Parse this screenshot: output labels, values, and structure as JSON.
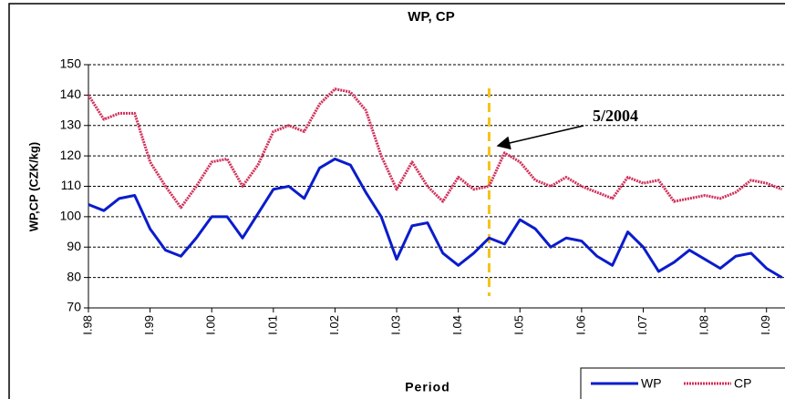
{
  "chart_data": {
    "type": "line",
    "title": "WP, CP",
    "x_label": "Period",
    "y_label": "WP,CP (CZK/kg)",
    "x": [
      1998,
      1998.25,
      1998.5,
      1998.75,
      1999,
      1999.25,
      1999.5,
      1999.75,
      2000,
      2000.25,
      2000.5,
      2000.75,
      2001,
      2001.25,
      2001.5,
      2001.75,
      2002,
      2002.25,
      2002.5,
      2002.75,
      2003,
      2003.25,
      2003.5,
      2003.75,
      2004,
      2004.25,
      2004.5,
      2004.75,
      2005,
      2005.25,
      2005.5,
      2005.75,
      2006,
      2006.25,
      2006.5,
      2006.75,
      2007,
      2007.25,
      2007.5,
      2007.75,
      2008,
      2008.25,
      2008.5,
      2008.75,
      2009,
      2009.25
    ],
    "series": [
      {
        "name": "WP",
        "color": "#0a1ccc",
        "values": [
          104,
          102,
          106,
          107,
          96,
          89,
          87,
          93,
          100,
          100,
          93,
          101,
          109,
          110,
          106,
          116,
          119,
          117,
          108,
          100,
          86,
          97,
          98,
          88,
          84,
          88,
          93,
          91,
          99,
          96,
          90,
          93,
          92,
          87,
          84,
          95,
          90,
          82,
          85,
          89,
          86,
          83,
          87,
          88,
          83,
          80
        ]
      },
      {
        "name": "CP",
        "color": "#d0305a",
        "values": [
          140,
          132,
          134,
          134,
          118,
          110,
          103,
          110,
          118,
          119,
          110,
          117,
          128,
          130,
          128,
          137,
          142,
          141,
          135,
          120,
          109,
          118,
          110,
          105,
          113,
          109,
          110,
          121,
          118,
          112,
          110,
          113,
          110,
          108,
          106,
          113,
          111,
          112,
          105,
          106,
          107,
          106,
          108,
          112,
          111,
          109
        ]
      }
    ],
    "xlim": [
      1998,
      2009.3
    ],
    "ylim": [
      70,
      150
    ],
    "yticks": [
      70,
      80,
      90,
      100,
      110,
      120,
      130,
      140,
      150
    ],
    "xticks": [
      {
        "value": 1998,
        "label": "I.98"
      },
      {
        "value": 1999,
        "label": "I.99"
      },
      {
        "value": 2000,
        "label": "I.00"
      },
      {
        "value": 2001,
        "label": "I.01"
      },
      {
        "value": 2002,
        "label": "I.02"
      },
      {
        "value": 2003,
        "label": "I.03"
      },
      {
        "value": 2004,
        "label": "I.04"
      },
      {
        "value": 2005,
        "label": "I.05"
      },
      {
        "value": 2006,
        "label": "I.06"
      },
      {
        "value": 2007,
        "label": "I.07"
      },
      {
        "value": 2008,
        "label": "I.08"
      },
      {
        "value": 2009,
        "label": "I.09"
      }
    ],
    "grid": true,
    "legend": "bottom-right",
    "annotation": {
      "text": "5/2004",
      "x": 2004.5
    }
  }
}
